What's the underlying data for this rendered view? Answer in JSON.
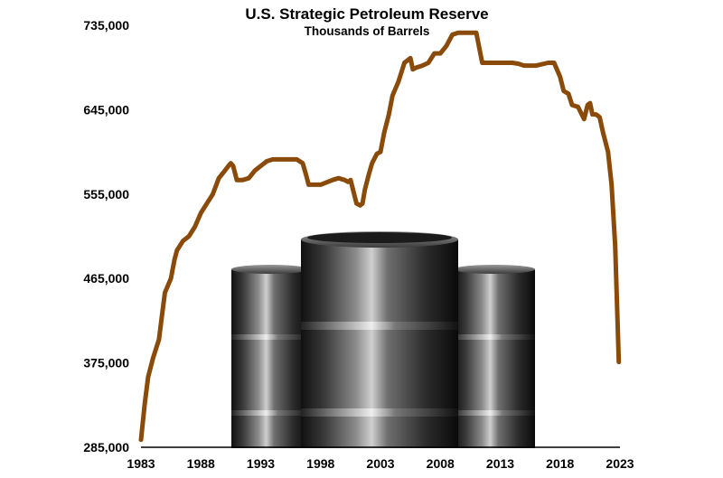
{
  "chart_data": {
    "type": "line",
    "title": "U.S. Strategic Petroleum Reserve",
    "subtitle": "Thousands of Barrels",
    "xlabel": "",
    "ylabel": "",
    "xlim": [
      1983,
      2023
    ],
    "ylim": [
      285000,
      735000
    ],
    "x_ticks": [
      "1983",
      "1988",
      "1993",
      "1998",
      "2003",
      "2008",
      "2013",
      "2018",
      "2023"
    ],
    "y_ticks": [
      "285,000",
      "375,000",
      "465,000",
      "555,000",
      "645,000",
      "735,000"
    ],
    "grid": false,
    "legend": "none",
    "colors": {
      "line": "#8a4a0a",
      "axis": "#000000"
    },
    "series": [
      {
        "x": [
          1983.0,
          1983.3,
          1983.6,
          1984.0,
          1984.5,
          1984.8,
          1985.0,
          1985.5,
          1985.8,
          1986.0,
          1986.5,
          1987.0,
          1987.5,
          1988.0,
          1988.5,
          1989.0,
          1989.5,
          1990.0,
          1990.3,
          1990.5,
          1990.7,
          1991.0,
          1991.5,
          1992.0,
          1992.5,
          1993.0,
          1993.5,
          1994.0,
          1995.0,
          1996.0,
          1996.5,
          1996.8,
          1997.0,
          1998.0,
          1999.0,
          1999.5,
          2000.0,
          2000.3,
          2000.5,
          2001.0,
          2001.3,
          2001.5,
          2001.7,
          2002.0,
          2002.3,
          2002.7,
          2003.0,
          2003.3,
          2003.7,
          2004.0,
          2004.5,
          2005.0,
          2005.5,
          2005.7,
          2006.0,
          2006.5,
          2007.0,
          2007.5,
          2008.0,
          2008.5,
          2009.0,
          2009.5,
          2010.0,
          2010.5,
          2011.0,
          2011.5,
          2012.0,
          2013.0,
          2014.0,
          2014.5,
          2015.0,
          2016.0,
          2017.0,
          2017.5,
          2018.0,
          2018.3,
          2018.7,
          2019.0,
          2019.5,
          2020.0,
          2020.3,
          2020.5,
          2020.7,
          2021.0,
          2021.3,
          2021.6,
          2022.0,
          2022.3,
          2022.6,
          2022.8,
          2022.9
        ],
        "values": [
          293000,
          330000,
          360000,
          380000,
          400000,
          430000,
          450000,
          465000,
          485000,
          495000,
          505000,
          510000,
          520000,
          535000,
          545000,
          555000,
          572000,
          580000,
          585000,
          588000,
          585000,
          570000,
          570000,
          572000,
          580000,
          585000,
          590000,
          592000,
          592000,
          592000,
          588000,
          575000,
          565000,
          565000,
          570000,
          572000,
          570000,
          568000,
          570000,
          545000,
          543000,
          545000,
          560000,
          575000,
          588000,
          598000,
          600000,
          620000,
          640000,
          660000,
          675000,
          695000,
          700000,
          688000,
          690000,
          692000,
          695000,
          705000,
          705000,
          713000,
          725000,
          727000,
          727000,
          727000,
          727000,
          695000,
          695000,
          695000,
          695000,
          694000,
          692000,
          692000,
          695000,
          695000,
          680000,
          665000,
          662000,
          650000,
          648000,
          635000,
          650000,
          652000,
          640000,
          640000,
          637000,
          620000,
          600000,
          565000,
          500000,
          420000,
          376000
        ]
      }
    ]
  },
  "image": {
    "description_icon": "oil-barrels-illustration"
  }
}
